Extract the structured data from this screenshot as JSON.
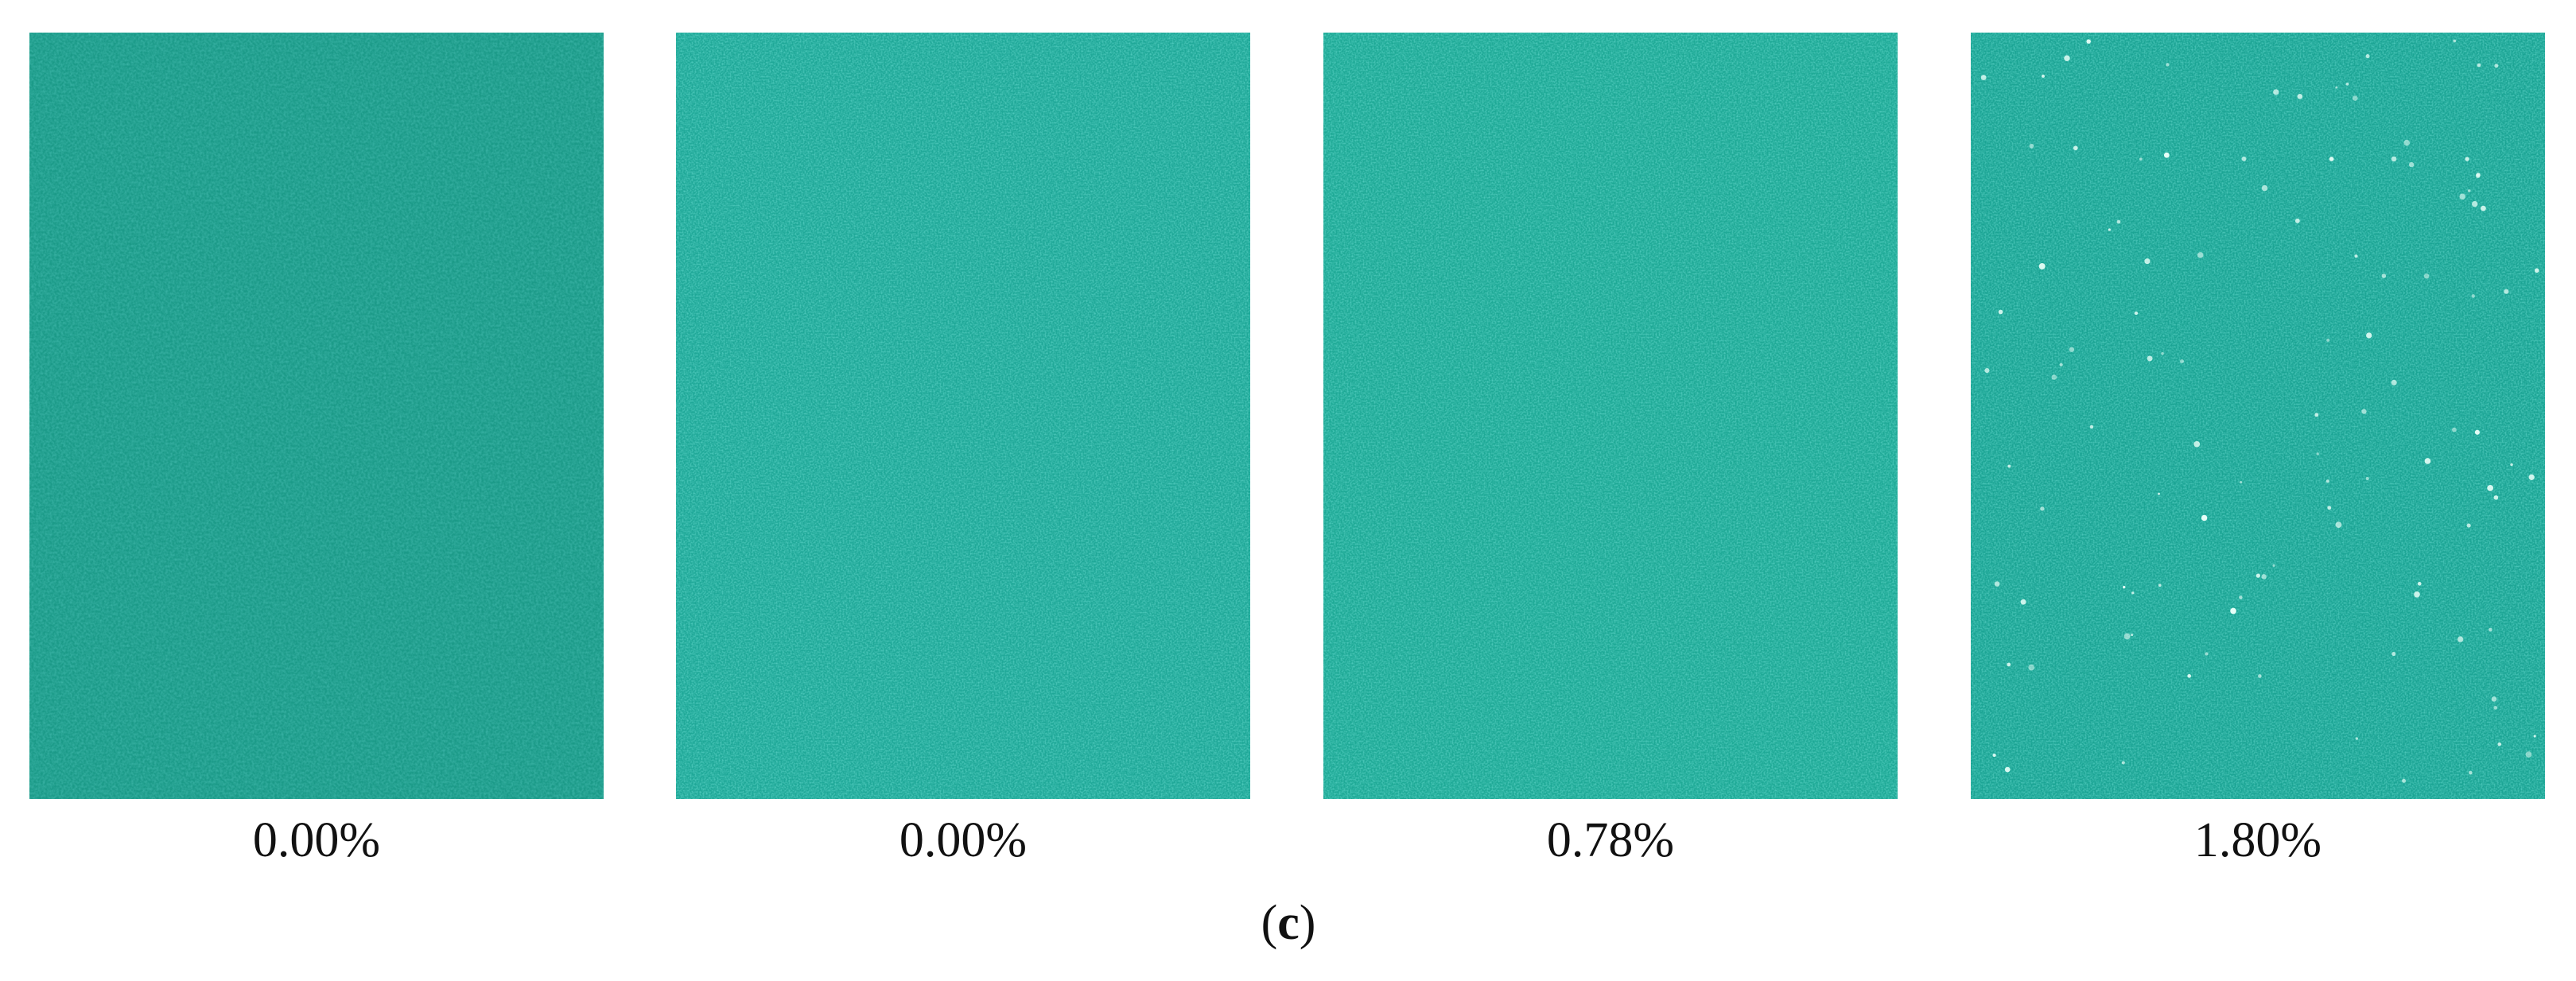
{
  "panels": [
    {
      "label": "0.00%"
    },
    {
      "label": "0.00%"
    },
    {
      "label": "0.78%"
    },
    {
      "label": "1.80%"
    }
  ],
  "caption": [
    "(",
    "c",
    ")"
  ]
}
